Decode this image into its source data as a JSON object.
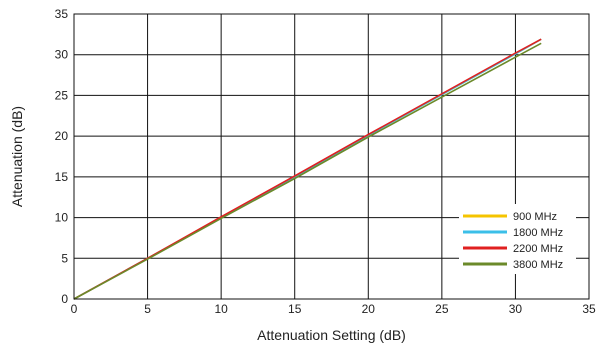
{
  "chart_data": {
    "type": "line",
    "title": "",
    "xlabel": "Attenuation Setting (dB)",
    "ylabel": "Attenuation (dB)",
    "xlim": [
      0,
      35
    ],
    "ylim": [
      0,
      35
    ],
    "x_ticks": [
      "0",
      "5",
      "10",
      "15",
      "20",
      "25",
      "30",
      "35"
    ],
    "y_ticks": [
      "0",
      "5",
      "10",
      "15",
      "20",
      "25",
      "30",
      "35"
    ],
    "grid": true,
    "legend_position": "bottom-right",
    "series": [
      {
        "name": "900 MHz",
        "color": "#f5c400",
        "x": [
          0,
          5,
          10,
          15,
          20,
          25,
          30,
          31.75
        ],
        "y": [
          0,
          5.0,
          10.0,
          15.0,
          20.1,
          25.1,
          30.1,
          31.9
        ]
      },
      {
        "name": "1800 MHz",
        "color": "#3bbfe8",
        "x": [
          0,
          5,
          10,
          15,
          20,
          25,
          30,
          31.75
        ],
        "y": [
          0,
          5.0,
          10.0,
          15.0,
          20.1,
          25.1,
          30.1,
          31.9
        ]
      },
      {
        "name": "2200 MHz",
        "color": "#e02020",
        "x": [
          0,
          5,
          10,
          15,
          20,
          25,
          30,
          31.75
        ],
        "y": [
          0,
          5.0,
          10.1,
          15.1,
          20.2,
          25.2,
          30.2,
          31.9
        ]
      },
      {
        "name": "3800 MHz",
        "color": "#6b8a2a",
        "x": [
          0,
          5,
          10,
          15,
          20,
          25,
          30,
          31.75
        ],
        "y": [
          0,
          4.9,
          9.9,
          14.8,
          19.9,
          24.8,
          29.7,
          31.4
        ]
      }
    ]
  }
}
